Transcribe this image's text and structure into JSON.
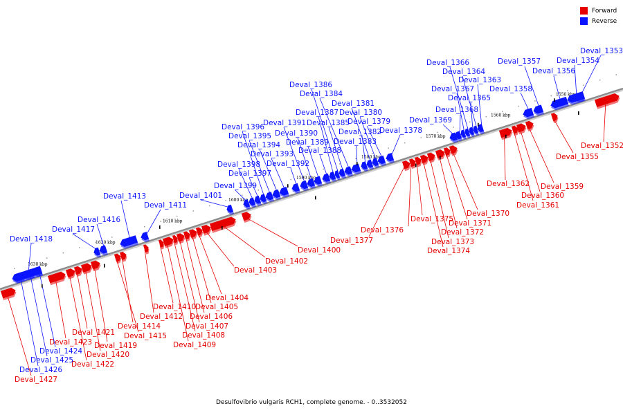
{
  "colors": {
    "forward": "#e60000",
    "reverse": "#0b14ff",
    "backbone": "#8c8c8c"
  },
  "legend": [
    {
      "label": "Forward",
      "color": "#e60000"
    },
    {
      "label": "Reverse",
      "color": "#0b14ff"
    }
  ],
  "caption": "Desulfovibrio vulgaris RCH1, complete genome. - 0..3532052",
  "scale": [
    {
      "pos": 1550,
      "label": "1550 kbp"
    },
    {
      "pos": 1560,
      "label": "1560 kbp"
    },
    {
      "pos": 1570,
      "label": "1570 kbp"
    },
    {
      "pos": 1580,
      "label": "1580 kbp"
    },
    {
      "pos": 1590,
      "label": "1590 kbp"
    },
    {
      "pos": 1600,
      "label": "1600 kbp"
    },
    {
      "pos": 1610,
      "label": "1610 kbp"
    },
    {
      "pos": 1620,
      "label": "1620 kbp"
    },
    {
      "pos": 1630,
      "label": "1630 kbp"
    }
  ],
  "genes": [
    {
      "name": "Deval_1352",
      "strand": "forward"
    },
    {
      "name": "Deval_1353",
      "strand": "reverse"
    },
    {
      "name": "Deval_1354",
      "strand": "reverse"
    },
    {
      "name": "Deval_1355",
      "strand": "forward"
    },
    {
      "name": "Deval_1356",
      "strand": "reverse"
    },
    {
      "name": "Deval_1357",
      "strand": "reverse"
    },
    {
      "name": "Deval_1358",
      "strand": "reverse"
    },
    {
      "name": "Deval_1359",
      "strand": "forward"
    },
    {
      "name": "Deval_1360",
      "strand": "forward"
    },
    {
      "name": "Deval_1361",
      "strand": "forward"
    },
    {
      "name": "Deval_1362",
      "strand": "forward"
    },
    {
      "name": "Deval_1363",
      "strand": "reverse"
    },
    {
      "name": "Deval_1364",
      "strand": "reverse"
    },
    {
      "name": "Deval_1365",
      "strand": "reverse"
    },
    {
      "name": "Deval_1366",
      "strand": "reverse"
    },
    {
      "name": "Deval_1367",
      "strand": "reverse"
    },
    {
      "name": "Deval_1368",
      "strand": "reverse"
    },
    {
      "name": "Deval_1369",
      "strand": "reverse"
    },
    {
      "name": "Deval_1370",
      "strand": "forward"
    },
    {
      "name": "Deval_1371",
      "strand": "forward"
    },
    {
      "name": "Deval_1372",
      "strand": "forward"
    },
    {
      "name": "Deval_1373",
      "strand": "forward"
    },
    {
      "name": "Deval_1374",
      "strand": "forward"
    },
    {
      "name": "Deval_1375",
      "strand": "forward"
    },
    {
      "name": "Deval_1376",
      "strand": "forward"
    },
    {
      "name": "Deval_1377",
      "strand": "forward"
    },
    {
      "name": "Deval_1378",
      "strand": "reverse"
    },
    {
      "name": "Deval_1379",
      "strand": "reverse"
    },
    {
      "name": "Deval_1380",
      "strand": "reverse"
    },
    {
      "name": "Deval_1381",
      "strand": "reverse"
    },
    {
      "name": "Deval_1382",
      "strand": "reverse"
    },
    {
      "name": "Deval_1383",
      "strand": "reverse"
    },
    {
      "name": "Deval_1384",
      "strand": "reverse"
    },
    {
      "name": "Deval_1385",
      "strand": "reverse"
    },
    {
      "name": "Deval_1386",
      "strand": "reverse"
    },
    {
      "name": "Deval_1387",
      "strand": "reverse"
    },
    {
      "name": "Deval_1388",
      "strand": "reverse"
    },
    {
      "name": "Deval_1389",
      "strand": "reverse"
    },
    {
      "name": "Deval_1390",
      "strand": "reverse"
    },
    {
      "name": "Deval_1391",
      "strand": "reverse"
    },
    {
      "name": "Deval_1392",
      "strand": "reverse"
    },
    {
      "name": "Deval_1393",
      "strand": "reverse"
    },
    {
      "name": "Deval_1394",
      "strand": "reverse"
    },
    {
      "name": "Deval_1395",
      "strand": "reverse"
    },
    {
      "name": "Deval_1396",
      "strand": "reverse"
    },
    {
      "name": "Deval_1397",
      "strand": "reverse"
    },
    {
      "name": "Deval_1398",
      "strand": "reverse"
    },
    {
      "name": "Deval_1399",
      "strand": "reverse"
    },
    {
      "name": "Deval_1400",
      "strand": "forward"
    },
    {
      "name": "Deval_1401",
      "strand": "reverse"
    },
    {
      "name": "Deval_1402",
      "strand": "forward"
    },
    {
      "name": "Deval_1403",
      "strand": "forward"
    },
    {
      "name": "Deval_1404",
      "strand": "forward"
    },
    {
      "name": "Deval_1405",
      "strand": "forward"
    },
    {
      "name": "Deval_1406",
      "strand": "forward"
    },
    {
      "name": "Deval_1407",
      "strand": "forward"
    },
    {
      "name": "Deval_1408",
      "strand": "forward"
    },
    {
      "name": "Deval_1409",
      "strand": "forward"
    },
    {
      "name": "Deval_1410",
      "strand": "forward"
    },
    {
      "name": "Deval_1411",
      "strand": "reverse"
    },
    {
      "name": "Deval_1412",
      "strand": "forward"
    },
    {
      "name": "Deval_1413",
      "strand": "reverse"
    },
    {
      "name": "Deval_1414",
      "strand": "forward"
    },
    {
      "name": "Deval_1415",
      "strand": "forward"
    },
    {
      "name": "Deval_1416",
      "strand": "reverse"
    },
    {
      "name": "Deval_1417",
      "strand": "reverse"
    },
    {
      "name": "Deval_1418",
      "strand": "reverse"
    },
    {
      "name": "Deval_1419",
      "strand": "forward"
    },
    {
      "name": "Deval_1420",
      "strand": "forward"
    },
    {
      "name": "Deval_1421",
      "strand": "forward"
    },
    {
      "name": "Deval_1422",
      "strand": "forward"
    },
    {
      "name": "Deval_1423",
      "strand": "forward"
    },
    {
      "name": "Deval_1424",
      "strand": "reverse"
    },
    {
      "name": "Deval_1425",
      "strand": "reverse"
    },
    {
      "name": "Deval_1426",
      "strand": "reverse"
    },
    {
      "name": "Deval_1427",
      "strand": "forward"
    }
  ]
}
